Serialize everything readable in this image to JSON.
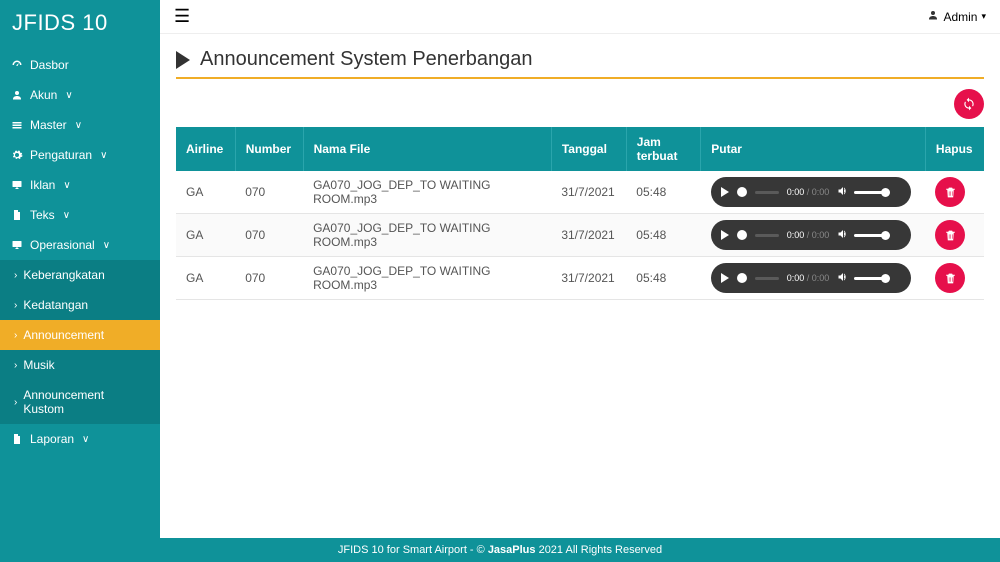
{
  "brand": "JFIDS 10",
  "user": {
    "label": "Admin"
  },
  "sidebar": {
    "items": [
      {
        "label": "Dasbor",
        "icon": "dashboard",
        "expandable": false
      },
      {
        "label": "Akun",
        "icon": "user",
        "expandable": true
      },
      {
        "label": "Master",
        "icon": "stack",
        "expandable": true
      },
      {
        "label": "Pengaturan",
        "icon": "gear",
        "expandable": true
      },
      {
        "label": "Iklan",
        "icon": "monitor",
        "expandable": true
      },
      {
        "label": "Teks",
        "icon": "file",
        "expandable": true
      },
      {
        "label": "Operasional",
        "icon": "monitor",
        "expandable": true,
        "children": [
          {
            "label": "Keberangkatan"
          },
          {
            "label": "Kedatangan"
          },
          {
            "label": "Announcement",
            "active": true
          },
          {
            "label": "Musik"
          },
          {
            "label": "Announcement Kustom"
          }
        ]
      },
      {
        "label": "Laporan",
        "icon": "file",
        "expandable": true
      }
    ]
  },
  "page": {
    "title": "Announcement System Penerbangan"
  },
  "table": {
    "headers": [
      "Airline",
      "Number",
      "Nama File",
      "Tanggal",
      "Jam terbuat",
      "Putar",
      "Hapus"
    ],
    "rows": [
      {
        "airline": "GA",
        "number": "070",
        "file": "GA070_JOG_DEP_TO WAITING ROOM.mp3",
        "date": "31/7/2021",
        "time": "05:48",
        "audio": {
          "current": "0:00",
          "duration": "0:00"
        }
      },
      {
        "airline": "GA",
        "number": "070",
        "file": "GA070_JOG_DEP_TO WAITING ROOM.mp3",
        "date": "31/7/2021",
        "time": "05:48",
        "audio": {
          "current": "0:00",
          "duration": "0:00"
        }
      },
      {
        "airline": "GA",
        "number": "070",
        "file": "GA070_JOG_DEP_TO WAITING ROOM.mp3",
        "date": "31/7/2021",
        "time": "05:48",
        "audio": {
          "current": "0:00",
          "duration": "0:00"
        }
      }
    ]
  },
  "footer": {
    "prefix": "JFIDS 10 for Smart Airport - © ",
    "brand": "JasaPlus",
    "suffix": " 2021 All Rights Reserved"
  },
  "colors": {
    "teal": "#0f9299",
    "tealDark": "#0b7e84",
    "accent": "#f0ad27",
    "danger": "#e6104b",
    "playerBg": "#373737"
  }
}
